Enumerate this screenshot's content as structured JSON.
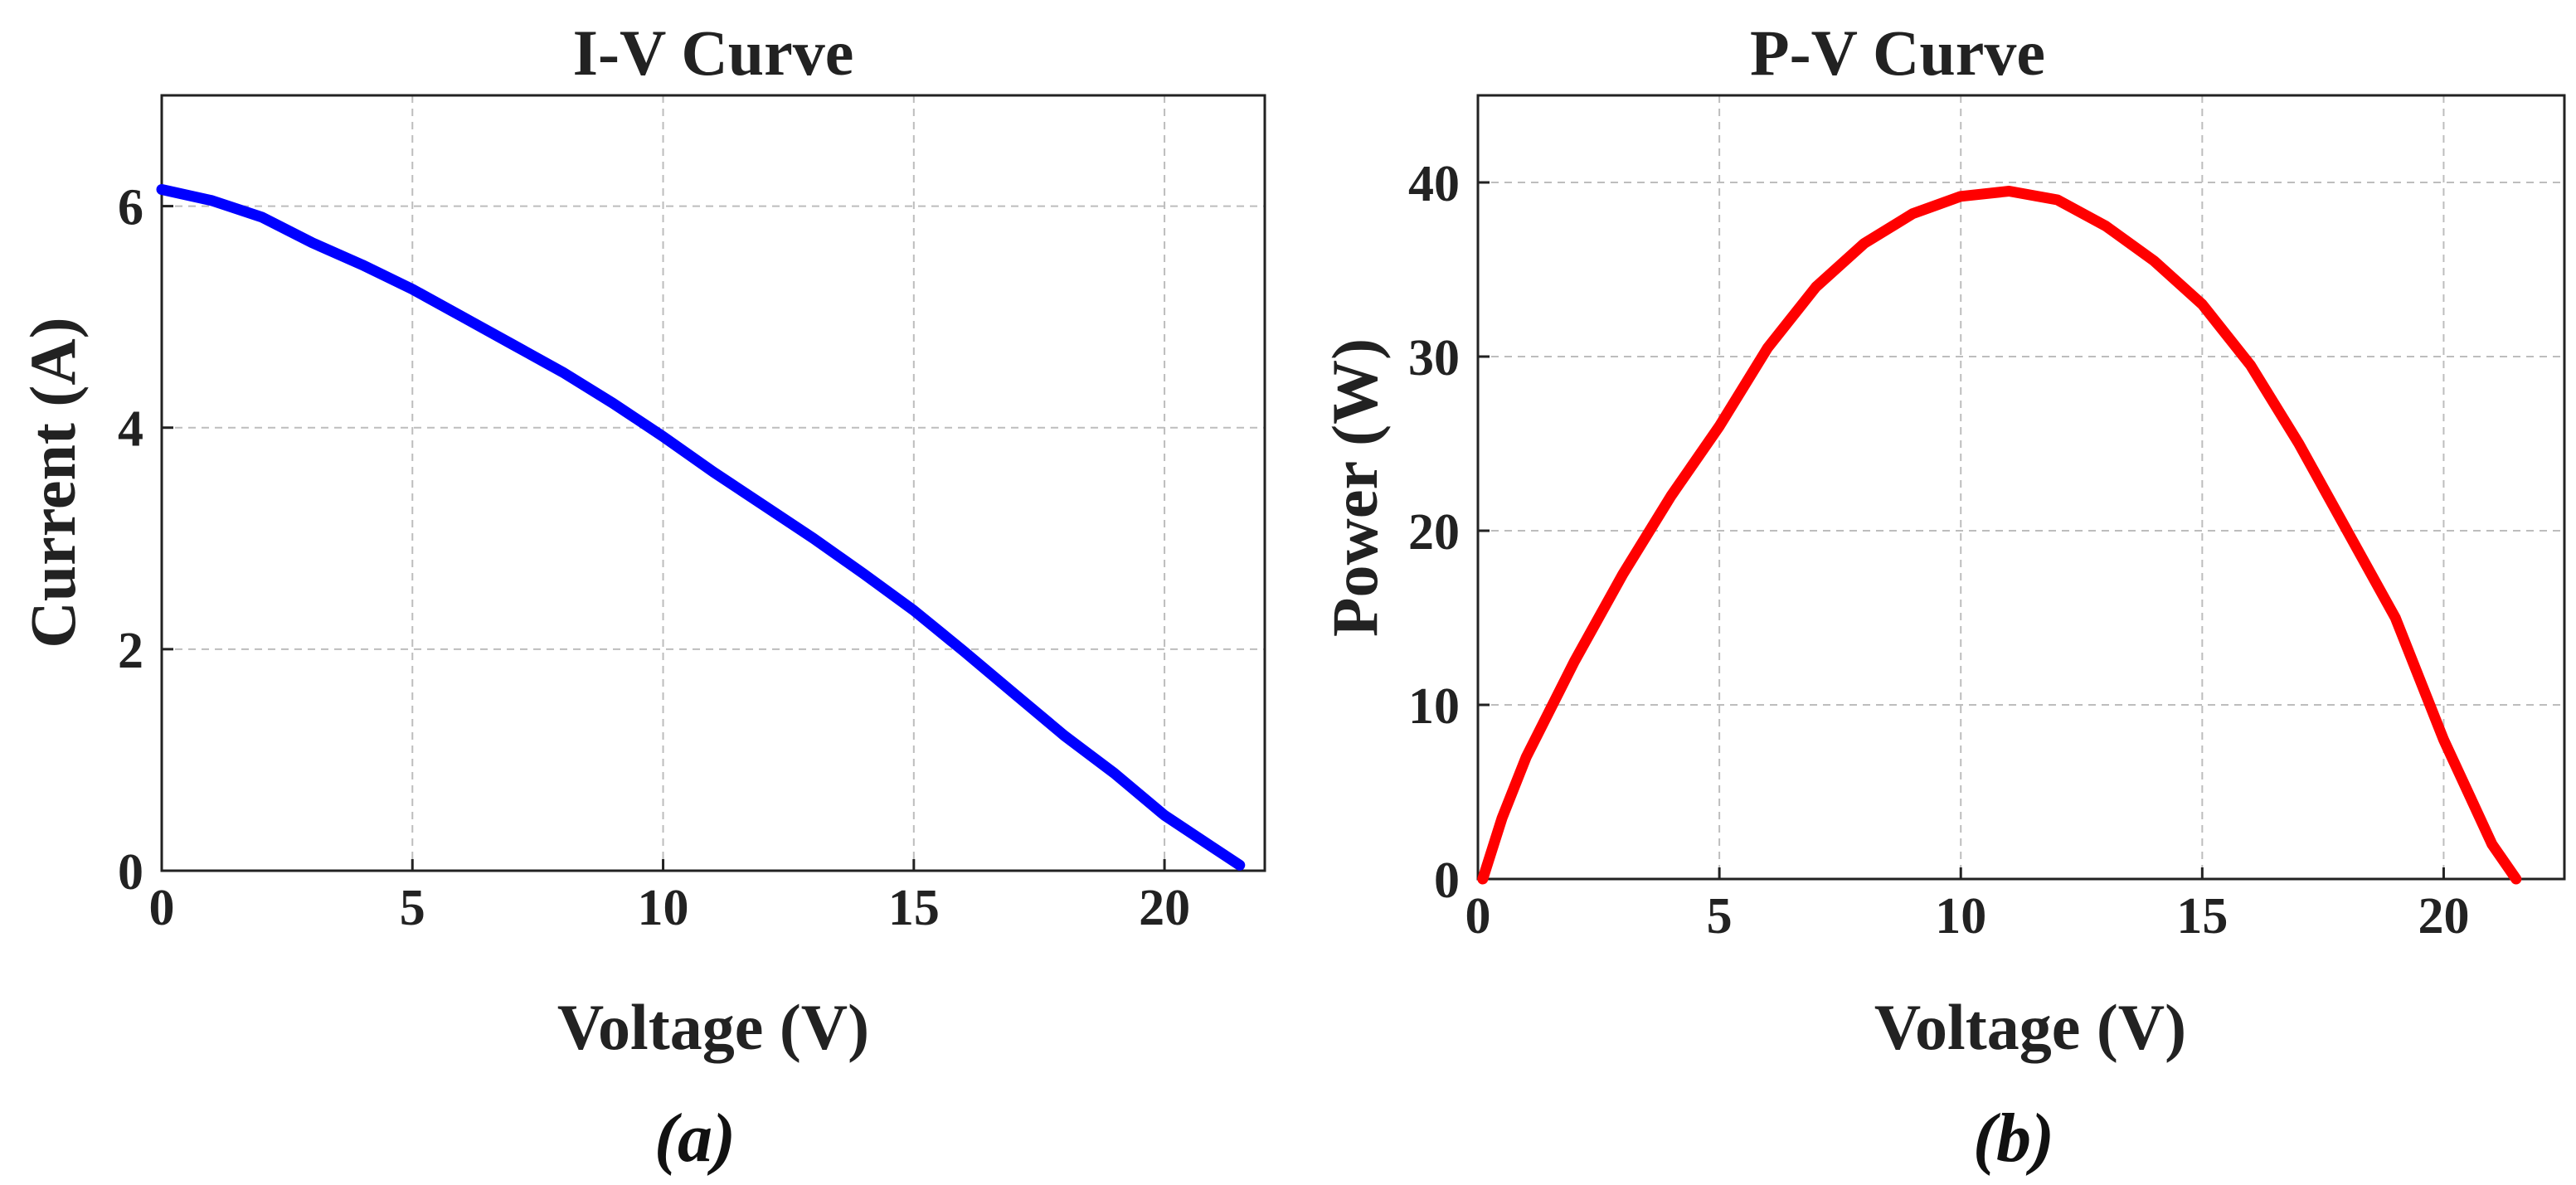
{
  "chart_data": [
    {
      "type": "line",
      "title": "I-V Curve",
      "xlabel": "Voltage (V)",
      "ylabel": "Current (A)",
      "xlim": [
        0,
        22
      ],
      "ylim": [
        0,
        7
      ],
      "xticks": [
        0,
        5,
        10,
        15,
        20
      ],
      "yticks": [
        0,
        2,
        4,
        6
      ],
      "grid": true,
      "caption": "(a)",
      "series": [
        {
          "name": "I-V",
          "color": "#0000ff",
          "x": [
            0,
            1,
            2,
            3,
            4,
            5,
            6,
            7,
            8,
            9,
            10,
            11,
            12,
            13,
            14,
            15,
            16,
            17,
            18,
            19,
            20,
            21,
            21.5
          ],
          "y": [
            6.15,
            6.05,
            5.9,
            5.67,
            5.47,
            5.25,
            5.0,
            4.75,
            4.5,
            4.22,
            3.92,
            3.6,
            3.3,
            3.0,
            2.68,
            2.35,
            1.98,
            1.6,
            1.22,
            0.88,
            0.5,
            0.2,
            0.05
          ]
        }
      ]
    },
    {
      "type": "line",
      "title": "P-V Curve",
      "xlabel": "Voltage (V)",
      "ylabel": "Power (W)",
      "xlim": [
        0,
        22.5
      ],
      "ylim": [
        0,
        45
      ],
      "xticks": [
        0,
        5,
        10,
        15,
        20
      ],
      "yticks": [
        0,
        10,
        20,
        30,
        40
      ],
      "grid": true,
      "caption": "(b)",
      "series": [
        {
          "name": "P-V",
          "color": "#ff0000",
          "x": [
            0.1,
            0.5,
            1,
            2,
            3,
            4,
            5,
            6,
            7,
            8,
            9,
            10,
            11,
            12,
            13,
            14,
            15,
            16,
            17,
            18,
            19,
            20,
            20.5,
            21,
            21.5
          ],
          "y": [
            0,
            3.5,
            7,
            12.5,
            17.5,
            22,
            26,
            30.5,
            34,
            36.5,
            38.2,
            39.2,
            39.5,
            39.0,
            37.5,
            35.5,
            33,
            29.5,
            25,
            20,
            15,
            8,
            5,
            2,
            0
          ]
        }
      ]
    }
  ]
}
